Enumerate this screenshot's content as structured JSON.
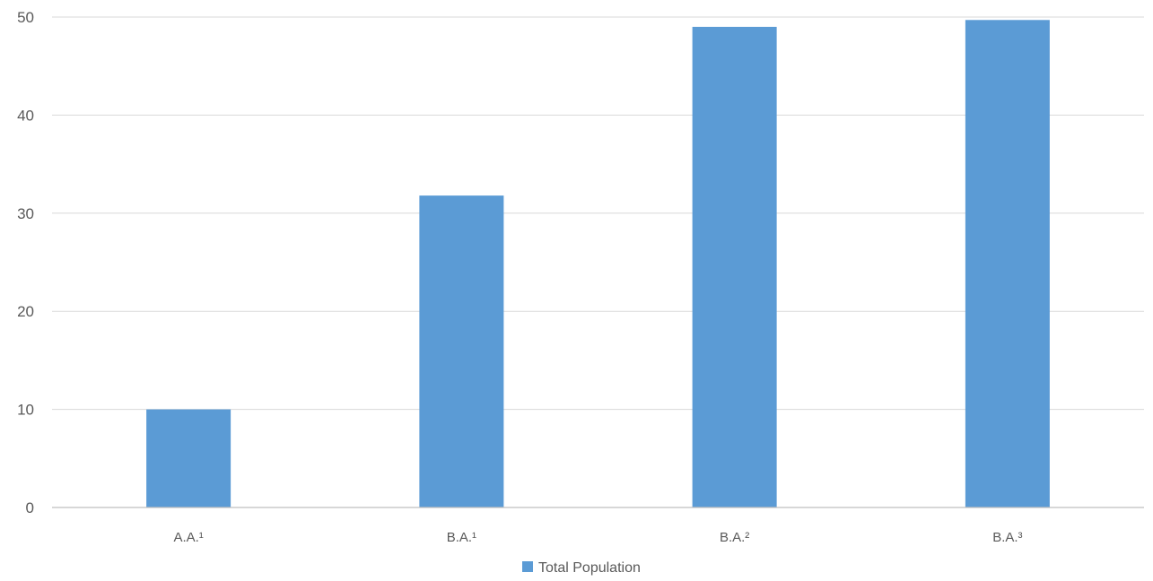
{
  "chart_data": {
    "type": "bar",
    "categories": [
      "A.A.¹",
      "B.A.¹",
      "B.A.²",
      "B.A.³"
    ],
    "series": [
      {
        "name": "Total Population",
        "values": [
          10,
          31.8,
          49,
          49.7
        ],
        "color": "#5b9bd5"
      }
    ],
    "y_ticks": [
      "0",
      "10",
      "20",
      "30",
      "40",
      "50"
    ],
    "ylim": [
      0,
      50
    ],
    "grid": true,
    "legend_position": "bottom"
  }
}
